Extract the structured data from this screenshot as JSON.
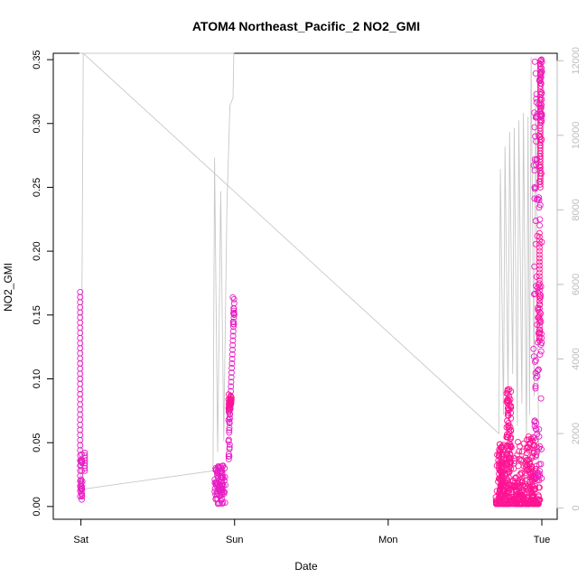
{
  "chart_data": {
    "type": "scatter",
    "title": "ATOM4 Northeast_Pacific_2 NO2_GMI",
    "xlabel": "Date",
    "ylabel": "NO2_GMI",
    "x_ticks": [
      {
        "label": "Sat",
        "day": 0
      },
      {
        "label": "Sun",
        "day": 1
      },
      {
        "label": "Mon",
        "day": 2
      },
      {
        "label": "Tue",
        "day": 3
      }
    ],
    "xlim_days": [
      -0.18,
      3.1
    ],
    "ylim": [
      -0.01,
      0.355
    ],
    "y_ticks": [
      "0.00",
      "0.05",
      "0.10",
      "0.15",
      "0.20",
      "0.25",
      "0.30",
      "0.35"
    ],
    "y_tick_values": [
      0,
      0.05,
      0.1,
      0.15,
      0.2,
      0.25,
      0.3,
      0.35
    ],
    "y2lim": [
      -300,
      12200
    ],
    "y2_ticks": [
      "0",
      "2000",
      "4000",
      "6000",
      "8000",
      "10000",
      "12000"
    ],
    "y2_tick_values": [
      0,
      2000,
      4000,
      6000,
      8000,
      10000,
      12000
    ],
    "colors": {
      "points_light": "#e81fc4",
      "points_dense": "#ff1493",
      "altitude_line": "#c8c8c8",
      "right_axis": "#bdbdbd"
    },
    "series": [
      {
        "segments": [
          {
            "day_start": -0.02,
            "day_end": 0.04,
            "max": 0.168,
            "min": 0.001
          },
          {
            "day_start": 0.87,
            "day_end": 1.02,
            "max": 0.163,
            "min": 0.002
          },
          {
            "day_start": 2.7,
            "day_end": 3.0,
            "max": 0.352,
            "min": 0.001
          }
        ]
      },
      {
        "axis": "right",
        "path": [
          [
            -0.01,
            12200
          ],
          [
            0.995,
            12200
          ],
          [
            0.99,
            11000
          ],
          [
            0.97,
            10800
          ],
          [
            0.95,
            8000
          ],
          [
            0.93,
            1800
          ],
          [
            0.91,
            8500
          ],
          [
            0.89,
            1500
          ],
          [
            0.87,
            9400
          ],
          [
            0.86,
            1000
          ],
          [
            0.0,
            500
          ],
          [
            0.015,
            12200
          ],
          [
            2.72,
            2000
          ],
          [
            2.73,
            9100
          ],
          [
            2.75,
            2500
          ],
          [
            2.76,
            9700
          ],
          [
            2.78,
            3000
          ],
          [
            2.79,
            10100
          ],
          [
            2.81,
            3600
          ],
          [
            2.82,
            10200
          ],
          [
            2.84,
            2200
          ],
          [
            2.85,
            10400
          ],
          [
            2.87,
            2800
          ],
          [
            2.88,
            10600
          ],
          [
            2.9,
            1800
          ],
          [
            2.91,
            10500
          ],
          [
            2.92,
            2500
          ],
          [
            2.93,
            12100
          ],
          [
            2.95,
            3000
          ],
          [
            2.96,
            11000
          ],
          [
            2.98,
            1200
          ]
        ]
      }
    ],
    "grid": false,
    "legend": "none"
  }
}
